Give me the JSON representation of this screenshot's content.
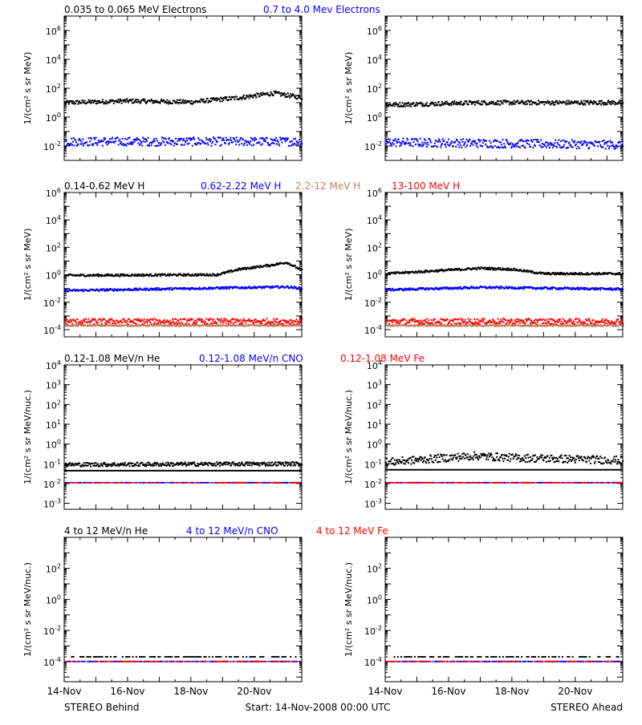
{
  "colors": {
    "black": "#000000",
    "blue": "#0000ff",
    "red": "#ff0000",
    "tan": "#c08060"
  },
  "x_ticks": [
    "14-Nov",
    "16-Nov",
    "18-Nov",
    "20-Nov"
  ],
  "footer": {
    "left": "STEREO Behind",
    "center": "Start: 14-Nov-2008 00:00 UTC",
    "right": "STEREO Ahead"
  },
  "rows": [
    {
      "id": "electrons",
      "ylabel": "1/(cm² s sr MeV)",
      "legend": [
        {
          "text": "0.035 to 0.065 MeV Electrons",
          "color": "#000000"
        },
        {
          "text": "0.7 to 4.0 Mev Electrons",
          "color": "#0000ff"
        }
      ]
    },
    {
      "id": "protons",
      "ylabel": "1/(cm² s sr MeV)",
      "legend": [
        {
          "text": "0.14-0.62 MeV H",
          "color": "#000000"
        },
        {
          "text": "0.62-2.22 MeV H",
          "color": "#0000ff"
        },
        {
          "text": "2.2-12 MeV H",
          "color": "#c08060"
        },
        {
          "text": "13-100 MeV H",
          "color": "#ff0000"
        }
      ]
    },
    {
      "id": "heavy-low",
      "ylabel": "1/(cm² s sr MeV/nuc.)",
      "legend": [
        {
          "text": "0.12-1.08 MeV/n He",
          "color": "#000000"
        },
        {
          "text": "0.12-1.08 MeV/n CNO",
          "color": "#0000ff"
        },
        {
          "text": "0.12-1.08 MeV Fe",
          "color": "#ff0000"
        }
      ]
    },
    {
      "id": "heavy-high",
      "ylabel": "1/(cm² s sr MeV/nuc.)",
      "legend": [
        {
          "text": "4 to 12 MeV/n He",
          "color": "#000000"
        },
        {
          "text": "4 to 12 MeV/n CNO",
          "color": "#0000ff"
        },
        {
          "text": "4 to 12 MeV Fe",
          "color": "#ff0000"
        }
      ]
    }
  ],
  "chart_data": [
    {
      "type": "scatter",
      "row": 0,
      "spacecraft": "STEREO Behind",
      "x_range_days": [
        0,
        7.5
      ],
      "y_scale": "log",
      "ylim": [
        0.001,
        10000000
      ],
      "ytick_labels": [
        "10^-2",
        "10^0",
        "10^2",
        "10^4",
        "10^6"
      ],
      "series": [
        {
          "name": "0.035 to 0.065 MeV Electrons",
          "color": "#000000",
          "level": 12,
          "profile": [
            [
              0,
              10
            ],
            [
              2,
              13
            ],
            [
              4,
              11
            ],
            [
              5.5,
              22
            ],
            [
              6.6,
              45
            ],
            [
              7.5,
              22
            ]
          ],
          "scatter": 0.15
        },
        {
          "name": "0.7 to 4.0 Mev Electrons",
          "color": "#0000ff",
          "level": 0.02,
          "profile": [
            [
              0,
              0.02
            ],
            [
              7.5,
              0.02
            ]
          ],
          "scatter": 0.3
        }
      ]
    },
    {
      "type": "scatter",
      "row": 0,
      "spacecraft": "STEREO Ahead",
      "x_range_days": [
        0,
        7.5
      ],
      "y_scale": "log",
      "ylim": [
        0.001,
        10000000
      ],
      "ytick_labels": [
        "10^-2",
        "10^0",
        "10^2",
        "10^4",
        "10^6"
      ],
      "series": [
        {
          "name": "0.035 to 0.065 MeV Electrons",
          "color": "#000000",
          "level": 9,
          "profile": [
            [
              0,
              7
            ],
            [
              3,
              10
            ],
            [
              7.5,
              10
            ]
          ],
          "scatter": 0.15
        },
        {
          "name": "0.7 to 4.0 Mev Electrons",
          "color": "#0000ff",
          "level": 0.015,
          "profile": [
            [
              0,
              0.018
            ],
            [
              7.5,
              0.012
            ]
          ],
          "scatter": 0.3
        }
      ]
    },
    {
      "type": "scatter",
      "row": 1,
      "spacecraft": "STEREO Behind",
      "x_range_days": [
        0,
        7.5
      ],
      "y_scale": "log",
      "ylim": [
        3e-05,
        1000000
      ],
      "ytick_labels": [
        "10^-4",
        "10^-2",
        "10^0",
        "10^2",
        "10^4",
        "10^6"
      ],
      "series": [
        {
          "name": "0.14-0.62 MeV H",
          "color": "#000000",
          "profile": [
            [
              0,
              0.9
            ],
            [
              4.8,
              1.0
            ],
            [
              5.5,
              2.5
            ],
            [
              6.5,
              5
            ],
            [
              7,
              8
            ],
            [
              7.5,
              2
            ]
          ],
          "scatter": 0.08
        },
        {
          "name": "0.62-2.22 MeV H",
          "color": "#0000ff",
          "profile": [
            [
              0,
              0.07
            ],
            [
              5,
              0.11
            ],
            [
              7,
              0.13
            ],
            [
              7.5,
              0.1
            ]
          ],
          "scatter": 0.08
        },
        {
          "name": "2.2-12 MeV H",
          "color": "#c08060",
          "profile": [
            [
              0,
              0.0002
            ],
            [
              7.5,
              0.0002
            ]
          ],
          "scatter": 0.05
        },
        {
          "name": "13-100 MeV H",
          "color": "#ff0000",
          "profile": [
            [
              0,
              0.0004
            ],
            [
              7.5,
              0.0004
            ]
          ],
          "scatter": 0.2
        }
      ]
    },
    {
      "type": "scatter",
      "row": 1,
      "spacecraft": "STEREO Ahead",
      "x_range_days": [
        0,
        7.5
      ],
      "y_scale": "log",
      "ylim": [
        3e-05,
        1000000
      ],
      "ytick_labels": [
        "10^-4",
        "10^-2",
        "10^0",
        "10^2",
        "10^4",
        "10^6"
      ],
      "series": [
        {
          "name": "0.14-0.62 MeV H",
          "color": "#000000",
          "profile": [
            [
              0,
              1.2
            ],
            [
              3,
              3
            ],
            [
              4,
              2.5
            ],
            [
              5,
              1.2
            ],
            [
              7.5,
              1.2
            ]
          ],
          "scatter": 0.08
        },
        {
          "name": "0.62-2.22 MeV H",
          "color": "#0000ff",
          "profile": [
            [
              0,
              0.08
            ],
            [
              3,
              0.12
            ],
            [
              7.5,
              0.09
            ]
          ],
          "scatter": 0.08
        },
        {
          "name": "2.2-12 MeV H",
          "color": "#c08060",
          "profile": [
            [
              0,
              0.0002
            ],
            [
              7.5,
              0.0002
            ]
          ],
          "scatter": 0.05
        },
        {
          "name": "13-100 MeV H",
          "color": "#ff0000",
          "profile": [
            [
              0,
              0.0004
            ],
            [
              7.5,
              0.0004
            ]
          ],
          "scatter": 0.2
        }
      ]
    },
    {
      "type": "scatter",
      "row": 2,
      "spacecraft": "STEREO Behind",
      "x_range_days": [
        0,
        7.5
      ],
      "y_scale": "log",
      "ylim": [
        0.0005,
        10000
      ],
      "ytick_labels": [
        "10^-3",
        "10^-2",
        "10^-1",
        "10^0",
        "10^1",
        "10^2",
        "10^3",
        "10^4"
      ],
      "series": [
        {
          "name": "0.12-1.08 MeV/n He",
          "color": "#000000",
          "profile": [
            [
              0,
              0.09
            ],
            [
              7.5,
              0.1
            ]
          ],
          "scatter": 0.1,
          "baseline": 0.045
        },
        {
          "name": "0.12-1.08 MeV/n CNO",
          "color": "#0000ff",
          "profile": [
            [
              0,
              0.011
            ],
            [
              7.5,
              0.011
            ]
          ],
          "scatter": 0.0,
          "baseline": 0.011
        },
        {
          "name": "0.12-1.08 MeV Fe",
          "color": "#ff0000",
          "profile": [
            [
              0,
              0.011
            ],
            [
              7.5,
              0.011
            ]
          ],
          "scatter": 0.0
        }
      ]
    },
    {
      "type": "scatter",
      "row": 2,
      "spacecraft": "STEREO Ahead",
      "x_range_days": [
        0,
        7.5
      ],
      "y_scale": "log",
      "ylim": [
        0.0005,
        10000
      ],
      "ytick_labels": [
        "10^-3",
        "10^-2",
        "10^-1",
        "10^0",
        "10^1",
        "10^2",
        "10^3",
        "10^4"
      ],
      "series": [
        {
          "name": "0.12-1.08 MeV/n He",
          "color": "#000000",
          "profile": [
            [
              0,
              0.12
            ],
            [
              2.8,
              0.25
            ],
            [
              4,
              0.2
            ],
            [
              7.5,
              0.15
            ]
          ],
          "scatter": 0.2,
          "baseline": 0.05
        },
        {
          "name": "0.12-1.08 MeV/n CNO",
          "color": "#0000ff",
          "profile": [
            [
              0,
              0.011
            ],
            [
              7.5,
              0.011
            ]
          ],
          "scatter": 0.0,
          "baseline": 0.011
        },
        {
          "name": "0.12-1.08 MeV Fe",
          "color": "#ff0000",
          "profile": [
            [
              0,
              0.011
            ],
            [
              7.5,
              0.011
            ]
          ],
          "scatter": 0.0
        }
      ]
    },
    {
      "type": "scatter",
      "row": 3,
      "spacecraft": "STEREO Behind",
      "x_range_days": [
        0,
        7.5
      ],
      "y_scale": "log",
      "ylim": [
        5e-06,
        10000
      ],
      "ytick_labels": [
        "10^-4",
        "10^-2",
        "10^0",
        "10^2"
      ],
      "series": [
        {
          "name": "4 to 12 MeV/n He",
          "color": "#000000",
          "profile": [
            [
              0,
              0.0002
            ],
            [
              7.5,
              0.0002
            ]
          ],
          "scatter": 0.0
        },
        {
          "name": "4 to 12 MeV/n CNO",
          "color": "#0000ff",
          "profile": [
            [
              0,
              0.0001
            ],
            [
              7.5,
              0.0001
            ]
          ],
          "scatter": 0.0,
          "baseline": 0.0001
        },
        {
          "name": "4 to 12 MeV Fe",
          "color": "#ff0000",
          "profile": [
            [
              0,
              0.0001
            ],
            [
              7.5,
              0.0001
            ]
          ],
          "scatter": 0.0
        }
      ]
    },
    {
      "type": "scatter",
      "row": 3,
      "spacecraft": "STEREO Ahead",
      "x_range_days": [
        0,
        7.5
      ],
      "y_scale": "log",
      "ylim": [
        5e-06,
        10000
      ],
      "ytick_labels": [
        "10^-4",
        "10^-2",
        "10^0",
        "10^2"
      ],
      "series": [
        {
          "name": "4 to 12 MeV/n He",
          "color": "#000000",
          "profile": [
            [
              0,
              0.0002
            ],
            [
              7.5,
              0.0002
            ]
          ],
          "scatter": 0.0
        },
        {
          "name": "4 to 12 MeV/n CNO",
          "color": "#0000ff",
          "profile": [
            [
              0,
              0.0001
            ],
            [
              7.5,
              0.0001
            ]
          ],
          "scatter": 0.0,
          "baseline": 0.0001
        },
        {
          "name": "4 to 12 MeV Fe",
          "color": "#ff0000",
          "profile": [
            [
              0,
              0.0001
            ],
            [
              7.5,
              0.0001
            ]
          ],
          "scatter": 0.0
        }
      ]
    }
  ]
}
